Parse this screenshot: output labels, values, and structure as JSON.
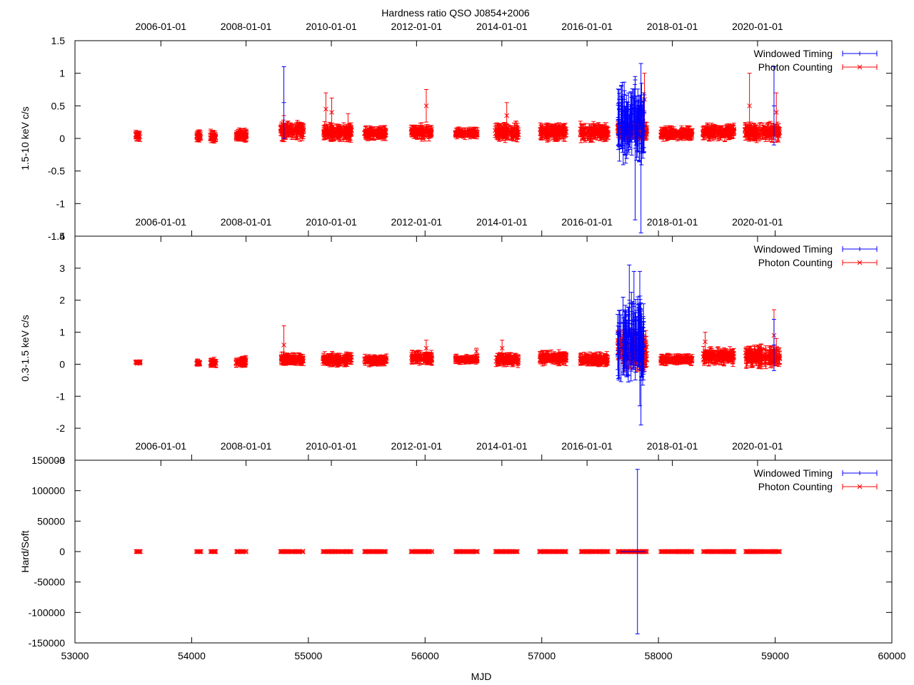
{
  "chart_data": {
    "title": "Hardness ratio QSO J0854+2006",
    "type": "scatter",
    "xlabel": "MJD",
    "xlim": [
      53000,
      60000
    ],
    "xticks": [
      53000,
      54000,
      55000,
      56000,
      57000,
      58000,
      59000,
      60000
    ],
    "date_ticks": [
      {
        "mjd": 53736,
        "label": "2006-01-01"
      },
      {
        "mjd": 54466,
        "label": "2008-01-01"
      },
      {
        "mjd": 55197,
        "label": "2010-01-01"
      },
      {
        "mjd": 55927,
        "label": "2012-01-01"
      },
      {
        "mjd": 56658,
        "label": "2014-01-01"
      },
      {
        "mjd": 57388,
        "label": "2016-01-01"
      },
      {
        "mjd": 58119,
        "label": "2018-01-01"
      },
      {
        "mjd": 58849,
        "label": "2020-01-01"
      }
    ],
    "legend": {
      "placement": "top-right",
      "entries": [
        "Windowed Timing",
        "Photon Counting"
      ]
    },
    "colors": {
      "wt": "#0000ff",
      "pc": "#ff0000"
    },
    "panels": [
      {
        "ylabel": "1.5-10 keV c/s",
        "ylim": [
          -1.5,
          1.5
        ],
        "ytick_labels": [
          "1.5",
          "1",
          "0.5",
          "0",
          "-0.5",
          "-1",
          "-1.5"
        ],
        "pc_clusters": [
          {
            "start": 53520,
            "end": 53560,
            "level": 0.04,
            "spread": 0.03,
            "err": 0.05
          },
          {
            "start": 54040,
            "end": 54080,
            "level": 0.04,
            "spread": 0.03,
            "err": 0.06
          },
          {
            "start": 54160,
            "end": 54210,
            "level": 0.03,
            "spread": 0.03,
            "err": 0.06
          },
          {
            "start": 54380,
            "end": 54470,
            "level": 0.05,
            "spread": 0.03,
            "err": 0.06
          },
          {
            "start": 54760,
            "end": 54960,
            "level": 0.12,
            "spread": 0.06,
            "err": 0.08
          },
          {
            "start": 55120,
            "end": 55370,
            "level": 0.1,
            "spread": 0.05,
            "err": 0.08
          },
          {
            "start": 55480,
            "end": 55670,
            "level": 0.08,
            "spread": 0.04,
            "err": 0.06
          },
          {
            "start": 55880,
            "end": 56060,
            "level": 0.1,
            "spread": 0.05,
            "err": 0.07
          },
          {
            "start": 56260,
            "end": 56450,
            "level": 0.08,
            "spread": 0.03,
            "err": 0.05
          },
          {
            "start": 56600,
            "end": 56800,
            "level": 0.1,
            "spread": 0.05,
            "err": 0.08
          },
          {
            "start": 56980,
            "end": 57210,
            "level": 0.1,
            "spread": 0.05,
            "err": 0.08
          },
          {
            "start": 57330,
            "end": 57570,
            "level": 0.1,
            "spread": 0.05,
            "err": 0.08
          },
          {
            "start": 57650,
            "end": 57900,
            "level": 0.12,
            "spread": 0.06,
            "err": 0.08
          },
          {
            "start": 58020,
            "end": 58290,
            "level": 0.08,
            "spread": 0.04,
            "err": 0.06
          },
          {
            "start": 58380,
            "end": 58650,
            "level": 0.1,
            "spread": 0.05,
            "err": 0.07
          },
          {
            "start": 58740,
            "end": 59040,
            "level": 0.1,
            "spread": 0.05,
            "err": 0.08
          }
        ],
        "wt_clusters": [
          {
            "start": 57650,
            "end": 57880,
            "level": 0.25,
            "spread": 0.25,
            "err": 0.3
          }
        ],
        "pc_outliers": [
          {
            "x": 54790,
            "y": 0.2,
            "err": 0.15
          },
          {
            "x": 55150,
            "y": 0.45,
            "err": 0.25
          },
          {
            "x": 55200,
            "y": 0.4,
            "err": 0.22
          },
          {
            "x": 55340,
            "y": 0.18,
            "err": 0.2
          },
          {
            "x": 56010,
            "y": 0.5,
            "err": 0.25
          },
          {
            "x": 56700,
            "y": 0.35,
            "err": 0.2
          },
          {
            "x": 57880,
            "y": 0.6,
            "err": 0.4
          },
          {
            "x": 58780,
            "y": 0.5,
            "err": 0.5
          },
          {
            "x": 59010,
            "y": 0.4,
            "err": 0.3
          }
        ],
        "wt_outliers": [
          {
            "x": 54790,
            "y": 0.55,
            "err": 0.55
          },
          {
            "x": 57800,
            "y": -0.15,
            "err": 1.1
          },
          {
            "x": 57850,
            "y": -0.15,
            "err": 1.3
          },
          {
            "x": 58990,
            "y": 0.5,
            "err": 0.6
          }
        ]
      },
      {
        "ylabel": "0.3-1.5 keV c/s",
        "ylim": [
          -3,
          4
        ],
        "ytick_labels": [
          "4",
          "3",
          "2",
          "1",
          "0",
          "-1",
          "-2",
          "-3"
        ],
        "pc_clusters": [
          {
            "start": 53520,
            "end": 53560,
            "level": 0.05,
            "spread": 0.03,
            "err": 0.05
          },
          {
            "start": 54040,
            "end": 54080,
            "level": 0.05,
            "spread": 0.04,
            "err": 0.08
          },
          {
            "start": 54160,
            "end": 54210,
            "level": 0.05,
            "spread": 0.04,
            "err": 0.1
          },
          {
            "start": 54380,
            "end": 54470,
            "level": 0.08,
            "spread": 0.05,
            "err": 0.1
          },
          {
            "start": 54760,
            "end": 54960,
            "level": 0.15,
            "spread": 0.08,
            "err": 0.12
          },
          {
            "start": 55120,
            "end": 55370,
            "level": 0.15,
            "spread": 0.08,
            "err": 0.12
          },
          {
            "start": 55480,
            "end": 55670,
            "level": 0.12,
            "spread": 0.06,
            "err": 0.1
          },
          {
            "start": 55880,
            "end": 56060,
            "level": 0.2,
            "spread": 0.08,
            "err": 0.12
          },
          {
            "start": 56260,
            "end": 56450,
            "level": 0.15,
            "spread": 0.06,
            "err": 0.08
          },
          {
            "start": 56600,
            "end": 56800,
            "level": 0.15,
            "spread": 0.08,
            "err": 0.12
          },
          {
            "start": 56980,
            "end": 57210,
            "level": 0.2,
            "spread": 0.08,
            "err": 0.12
          },
          {
            "start": 57330,
            "end": 57570,
            "level": 0.15,
            "spread": 0.08,
            "err": 0.12
          },
          {
            "start": 57650,
            "end": 57900,
            "level": 0.45,
            "spread": 0.3,
            "err": 0.3
          },
          {
            "start": 58020,
            "end": 58290,
            "level": 0.15,
            "spread": 0.06,
            "err": 0.1
          },
          {
            "start": 58380,
            "end": 58650,
            "level": 0.25,
            "spread": 0.1,
            "err": 0.15
          },
          {
            "start": 58740,
            "end": 59040,
            "level": 0.25,
            "spread": 0.12,
            "err": 0.2
          }
        ],
        "wt_clusters": [
          {
            "start": 57650,
            "end": 57880,
            "level": 0.8,
            "spread": 0.6,
            "err": 0.7
          }
        ],
        "pc_outliers": [
          {
            "x": 54790,
            "y": 0.6,
            "err": 0.6
          },
          {
            "x": 56010,
            "y": 0.5,
            "err": 0.25
          },
          {
            "x": 56440,
            "y": 0.4,
            "err": 0.1
          },
          {
            "x": 56660,
            "y": 0.5,
            "err": 0.25
          },
          {
            "x": 58400,
            "y": 0.7,
            "err": 0.3
          },
          {
            "x": 58990,
            "y": 0.9,
            "err": 0.8
          },
          {
            "x": 59010,
            "y": 0.5,
            "err": 0.3
          }
        ],
        "wt_outliers": [
          {
            "x": 57750,
            "y": 2.0,
            "err": 1.1
          },
          {
            "x": 57790,
            "y": 1.8,
            "err": 1.1
          },
          {
            "x": 57840,
            "y": 0.8,
            "err": 2.1
          },
          {
            "x": 57850,
            "y": -0.5,
            "err": 1.4
          },
          {
            "x": 58990,
            "y": 0.6,
            "err": 0.8
          }
        ]
      },
      {
        "ylabel": "Hard/Soft",
        "ylim": [
          -150000,
          150000
        ],
        "ytick_labels": [
          "150000",
          "100000",
          "50000",
          "0",
          "-50000",
          "-100000",
          "-150000"
        ],
        "pc_clusters": [
          {
            "start": 53520,
            "end": 53560,
            "level": 0,
            "spread": 0,
            "err": 0
          },
          {
            "start": 54040,
            "end": 54080,
            "level": 0,
            "spread": 0,
            "err": 0
          },
          {
            "start": 54160,
            "end": 54210,
            "level": 0,
            "spread": 0,
            "err": 0
          },
          {
            "start": 54380,
            "end": 54470,
            "level": 0,
            "spread": 0,
            "err": 0
          },
          {
            "start": 54760,
            "end": 54960,
            "level": 0,
            "spread": 0,
            "err": 0
          },
          {
            "start": 55120,
            "end": 55370,
            "level": 0,
            "spread": 0,
            "err": 0
          },
          {
            "start": 55480,
            "end": 55670,
            "level": 0,
            "spread": 0,
            "err": 0
          },
          {
            "start": 55880,
            "end": 56060,
            "level": 0,
            "spread": 0,
            "err": 0
          },
          {
            "start": 56260,
            "end": 56450,
            "level": 0,
            "spread": 0,
            "err": 0
          },
          {
            "start": 56600,
            "end": 56800,
            "level": 0,
            "spread": 0,
            "err": 0
          },
          {
            "start": 56980,
            "end": 57210,
            "level": 0,
            "spread": 0,
            "err": 0
          },
          {
            "start": 57330,
            "end": 57570,
            "level": 0,
            "spread": 0,
            "err": 0
          },
          {
            "start": 57650,
            "end": 57900,
            "level": 0,
            "spread": 0,
            "err": 0
          },
          {
            "start": 58020,
            "end": 58290,
            "level": 0,
            "spread": 0,
            "err": 0
          },
          {
            "start": 58380,
            "end": 58650,
            "level": 0,
            "spread": 0,
            "err": 0
          },
          {
            "start": 58740,
            "end": 59040,
            "level": 0,
            "spread": 0,
            "err": 0
          }
        ],
        "wt_clusters": [
          {
            "start": 57690,
            "end": 57870,
            "level": 0,
            "spread": 0,
            "err": 0
          }
        ],
        "pc_outliers": [],
        "wt_outliers": [
          {
            "x": 57820,
            "y": 0,
            "err": 135000
          }
        ]
      }
    ]
  }
}
